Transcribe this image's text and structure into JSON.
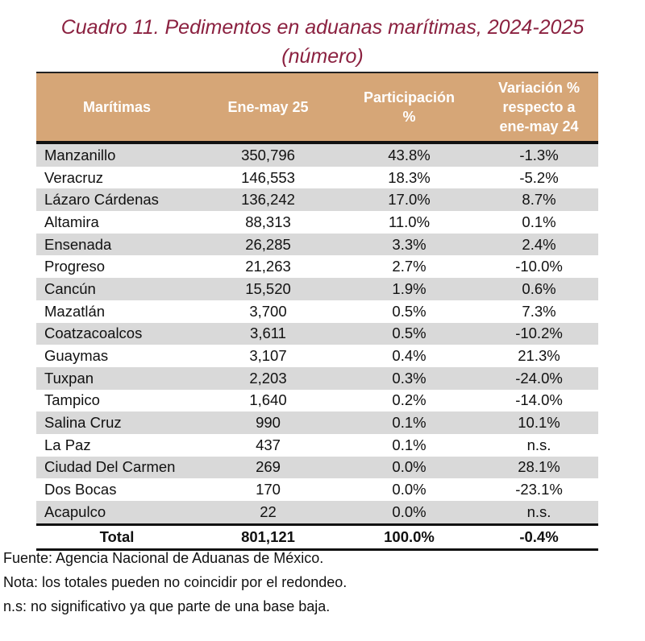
{
  "title": "Cuadro 11. Pedimentos en aduanas marítimas, 2024-2025",
  "subtitle": "(número)",
  "headers": [
    "Marítimas",
    "Ene-may 25",
    "Participación %",
    "Variación % respecto a ene-may 24"
  ],
  "rows": [
    [
      "Manzanillo",
      "350,796",
      "43.8%",
      "-1.3%"
    ],
    [
      "Veracruz",
      "146,553",
      "18.3%",
      "-5.2%"
    ],
    [
      "Lázaro Cárdenas",
      "136,242",
      "17.0%",
      "8.7%"
    ],
    [
      "Altamira",
      "88,313",
      "11.0%",
      "0.1%"
    ],
    [
      "Ensenada",
      "26,285",
      "3.3%",
      "2.4%"
    ],
    [
      "Progreso",
      "21,263",
      "2.7%",
      "-10.0%"
    ],
    [
      "Cancún",
      "15,520",
      "1.9%",
      "0.6%"
    ],
    [
      "Mazatlán",
      "3,700",
      "0.5%",
      "7.3%"
    ],
    [
      "Coatzacoalcos",
      "3,611",
      "0.5%",
      "-10.2%"
    ],
    [
      "Guaymas",
      "3,107",
      "0.4%",
      "21.3%"
    ],
    [
      "Tuxpan",
      "2,203",
      "0.3%",
      "-24.0%"
    ],
    [
      "Tampico",
      "1,640",
      "0.2%",
      "-14.0%"
    ],
    [
      "Salina Cruz",
      "990",
      "0.1%",
      "10.1%"
    ],
    [
      "La Paz",
      "437",
      "0.1%",
      "n.s."
    ],
    [
      "Ciudad Del Carmen",
      "269",
      "0.0%",
      "28.1%"
    ],
    [
      "Dos Bocas",
      "170",
      "0.0%",
      "-23.1%"
    ],
    [
      "Acapulco",
      "22",
      "0.0%",
      "n.s."
    ]
  ],
  "total": [
    "Total",
    "801,121",
    "100.0%",
    "-0.4%"
  ],
  "notes": [
    "Fuente: Agencia Nacional de Aduanas de México.",
    "Nota: los totales pueden no coincidir por el redondeo.",
    "n.s: no significativo ya que parte de una base baja."
  ],
  "colors": {
    "title": "#8b2140",
    "header_bg": "#d6a677",
    "stripe": "#d9d9d9"
  }
}
